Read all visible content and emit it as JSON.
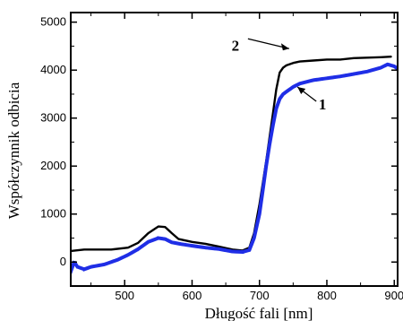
{
  "chart_data": {
    "type": "line",
    "xlabel": "Długość fali [nm]",
    "ylabel": "Współczynnik odbicia",
    "xlim": [
      420,
      905
    ],
    "ylim": [
      -500,
      5200
    ],
    "grid": false,
    "x_ticks": [
      500,
      600,
      700,
      800,
      900
    ],
    "x_tick_labels": [
      "500",
      "600",
      "700",
      "800",
      "900"
    ],
    "y_ticks": [
      0,
      1000,
      2000,
      3000,
      4000,
      5000
    ],
    "y_tick_labels": [
      "0",
      "1000",
      "2000",
      "3000",
      "4000",
      "5000"
    ],
    "series": [
      {
        "name": "2",
        "color": "#000000",
        "style": "solid",
        "x": [
          420,
          440,
          480,
          505,
          520,
          535,
          550,
          560,
          570,
          580,
          600,
          620,
          640,
          660,
          675,
          685,
          692,
          700,
          705,
          710,
          715,
          720,
          725,
          730,
          735,
          740,
          750,
          760,
          780,
          800,
          820,
          840,
          860,
          880,
          895
        ],
        "y": [
          230,
          260,
          260,
          300,
          400,
          600,
          740,
          730,
          600,
          480,
          420,
          380,
          320,
          260,
          240,
          300,
          600,
          1200,
          1650,
          2100,
          2600,
          3100,
          3600,
          3950,
          4050,
          4100,
          4150,
          4180,
          4200,
          4220,
          4220,
          4250,
          4260,
          4270,
          4280
        ]
      },
      {
        "name": "1",
        "color": "#1f2ee6",
        "style": "dotted",
        "x": [
          420,
          425,
          430,
          440,
          450,
          470,
          490,
          505,
          520,
          535,
          550,
          560,
          570,
          585,
          600,
          620,
          640,
          660,
          675,
          685,
          692,
          700,
          705,
          710,
          715,
          720,
          725,
          730,
          735,
          740,
          750,
          760,
          780,
          800,
          820,
          840,
          860,
          880,
          890,
          900,
          905
        ],
        "y": [
          -200,
          0,
          -100,
          -150,
          -100,
          -50,
          50,
          150,
          270,
          420,
          500,
          480,
          410,
          370,
          340,
          300,
          270,
          220,
          210,
          250,
          500,
          1000,
          1500,
          2000,
          2450,
          2850,
          3200,
          3400,
          3500,
          3550,
          3650,
          3720,
          3790,
          3830,
          3870,
          3920,
          3970,
          4050,
          4120,
          4080,
          4030
        ]
      }
    ],
    "annotations": [
      {
        "text": "2",
        "x": 764,
        "y": 4260
      },
      {
        "text": "1",
        "x": 779,
        "y": 3480
      }
    ]
  }
}
